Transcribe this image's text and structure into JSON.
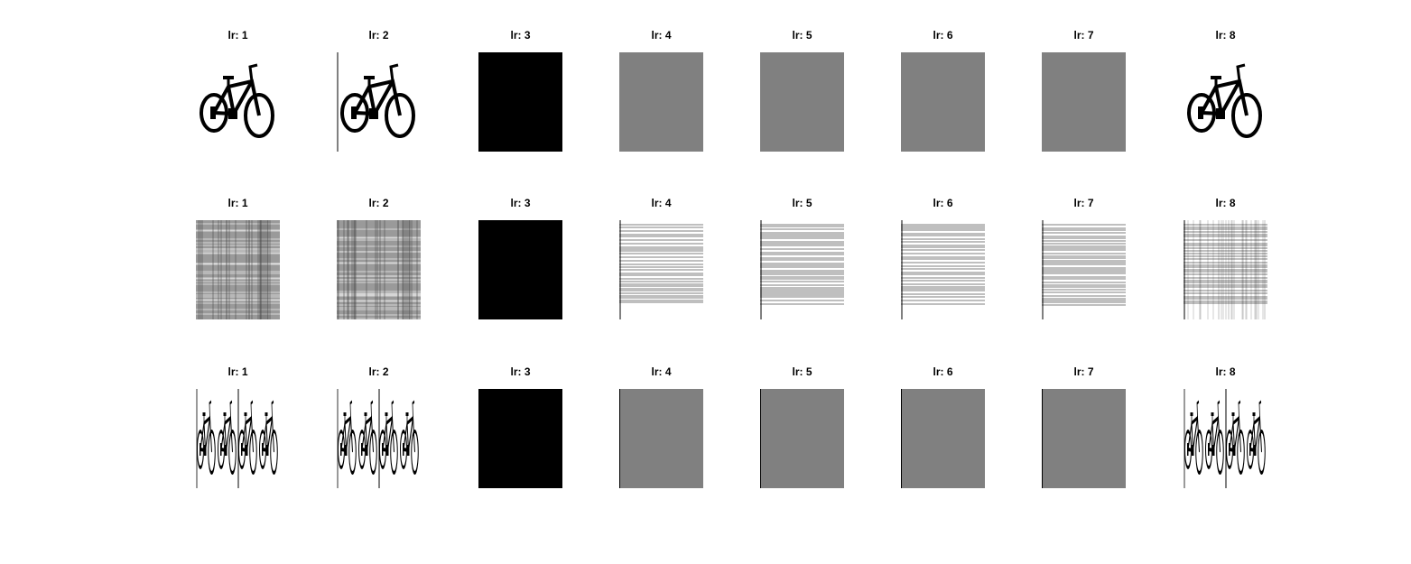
{
  "figure": {
    "background": "#ffffff",
    "rows": [
      {
        "id": "row-1",
        "panels": [
          {
            "title": "lr: 1",
            "kind": "bike",
            "fill": "#ffffff",
            "stroke": "#000000"
          },
          {
            "title": "lr: 2",
            "kind": "bike-line",
            "fill": "#ffffff",
            "stroke": "#000000"
          },
          {
            "title": "lr: 3",
            "kind": "solid",
            "fill": "#000000",
            "stroke": "#000000"
          },
          {
            "title": "lr: 4",
            "kind": "solid",
            "fill": "#808080",
            "stroke": "#808080"
          },
          {
            "title": "lr: 5",
            "kind": "solid",
            "fill": "#808080",
            "stroke": "#808080"
          },
          {
            "title": "lr: 6",
            "kind": "solid",
            "fill": "#808080",
            "stroke": "#808080"
          },
          {
            "title": "lr: 7",
            "kind": "solid",
            "fill": "#808080",
            "stroke": "#808080"
          },
          {
            "title": "lr: 8",
            "kind": "bike",
            "fill": "#ffffff",
            "stroke": "#000000"
          }
        ]
      },
      {
        "id": "row-2",
        "panels": [
          {
            "title": "lr: 1",
            "kind": "noise",
            "fill": "#9a9a9a",
            "stroke": "#ffffff"
          },
          {
            "title": "lr: 2",
            "kind": "noise",
            "fill": "#9a9a9a",
            "stroke": "#ffffff"
          },
          {
            "title": "lr: 3",
            "kind": "solid",
            "fill": "#000000",
            "stroke": "#000000"
          },
          {
            "title": "lr: 4",
            "kind": "hlines",
            "fill": "#ffffff",
            "stroke": "#000000"
          },
          {
            "title": "lr: 5",
            "kind": "hlines",
            "fill": "#ffffff",
            "stroke": "#000000"
          },
          {
            "title": "lr: 6",
            "kind": "hlines",
            "fill": "#ffffff",
            "stroke": "#000000"
          },
          {
            "title": "lr: 7",
            "kind": "hlines",
            "fill": "#ffffff",
            "stroke": "#000000"
          },
          {
            "title": "lr: 8",
            "kind": "hvnoise",
            "fill": "#ffffff",
            "stroke": "#000000"
          }
        ]
      },
      {
        "id": "row-3",
        "panels": [
          {
            "title": "lr: 1",
            "kind": "bike-strips",
            "fill": "#ffffff",
            "stroke": "#000000"
          },
          {
            "title": "lr: 2",
            "kind": "bike-strips",
            "fill": "#ffffff",
            "stroke": "#000000"
          },
          {
            "title": "lr: 3",
            "kind": "bars",
            "fill": "#000000",
            "stroke": "#000000"
          },
          {
            "title": "lr: 4",
            "kind": "bars",
            "fill": "#808080",
            "stroke": "#000000"
          },
          {
            "title": "lr: 5",
            "kind": "bars",
            "fill": "#808080",
            "stroke": "#000000"
          },
          {
            "title": "lr: 6",
            "kind": "bars",
            "fill": "#808080",
            "stroke": "#000000"
          },
          {
            "title": "lr: 7",
            "kind": "bars",
            "fill": "#808080",
            "stroke": "#000000"
          },
          {
            "title": "lr: 8",
            "kind": "bike-strips",
            "fill": "#ffffff",
            "stroke": "#000000"
          }
        ]
      }
    ]
  }
}
